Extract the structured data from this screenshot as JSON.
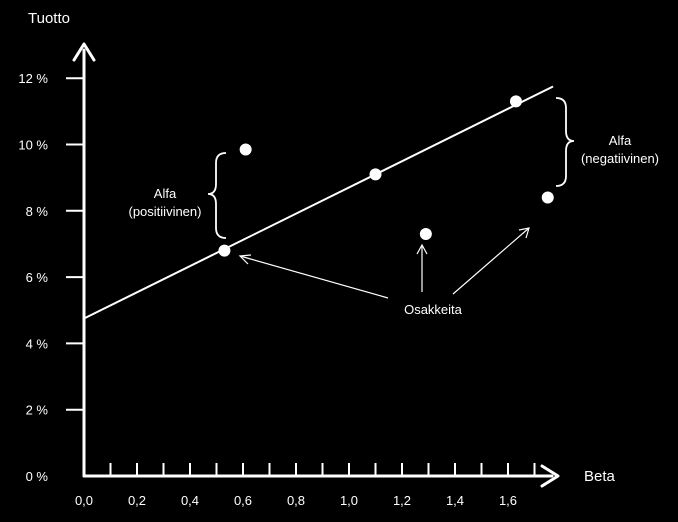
{
  "chart_data": {
    "type": "scatter",
    "title": "",
    "xlabel": "Beta",
    "ylabel": "Tuotto",
    "xlim": [
      0,
      1.8
    ],
    "ylim": [
      0,
      12
    ],
    "grid": false,
    "x_ticks": [
      0.0,
      0.2,
      0.4,
      0.6,
      0.8,
      1.0,
      1.2,
      1.4,
      1.6
    ],
    "x_tick_labels": [
      "0,0",
      "0,2",
      "0,4",
      "0,6",
      "0,8",
      "1,0",
      "1,2",
      "1,4",
      "1,6"
    ],
    "y_ticks": [
      0,
      2,
      4,
      6,
      8,
      10,
      12
    ],
    "y_tick_labels": [
      "0 %",
      "2 %",
      "4 %",
      "6 %",
      "8 %",
      "10 %",
      "12 %"
    ],
    "line": {
      "x": [
        0.0,
        1.77
      ],
      "y": [
        4.75,
        11.75
      ]
    },
    "points": [
      {
        "x": 0.53,
        "y": 6.8
      },
      {
        "x": 0.61,
        "y": 9.85
      },
      {
        "x": 1.1,
        "y": 9.1
      },
      {
        "x": 1.29,
        "y": 7.3
      },
      {
        "x": 1.63,
        "y": 11.3
      },
      {
        "x": 1.75,
        "y": 8.4
      }
    ],
    "annotations": {
      "alfa_positive": {
        "line1": "Alfa",
        "line2": "(positiivinen)"
      },
      "alfa_negative": {
        "line1": "Alfa",
        "line2": "(negatiivinen)"
      },
      "stocks": "Osakkeita"
    }
  }
}
